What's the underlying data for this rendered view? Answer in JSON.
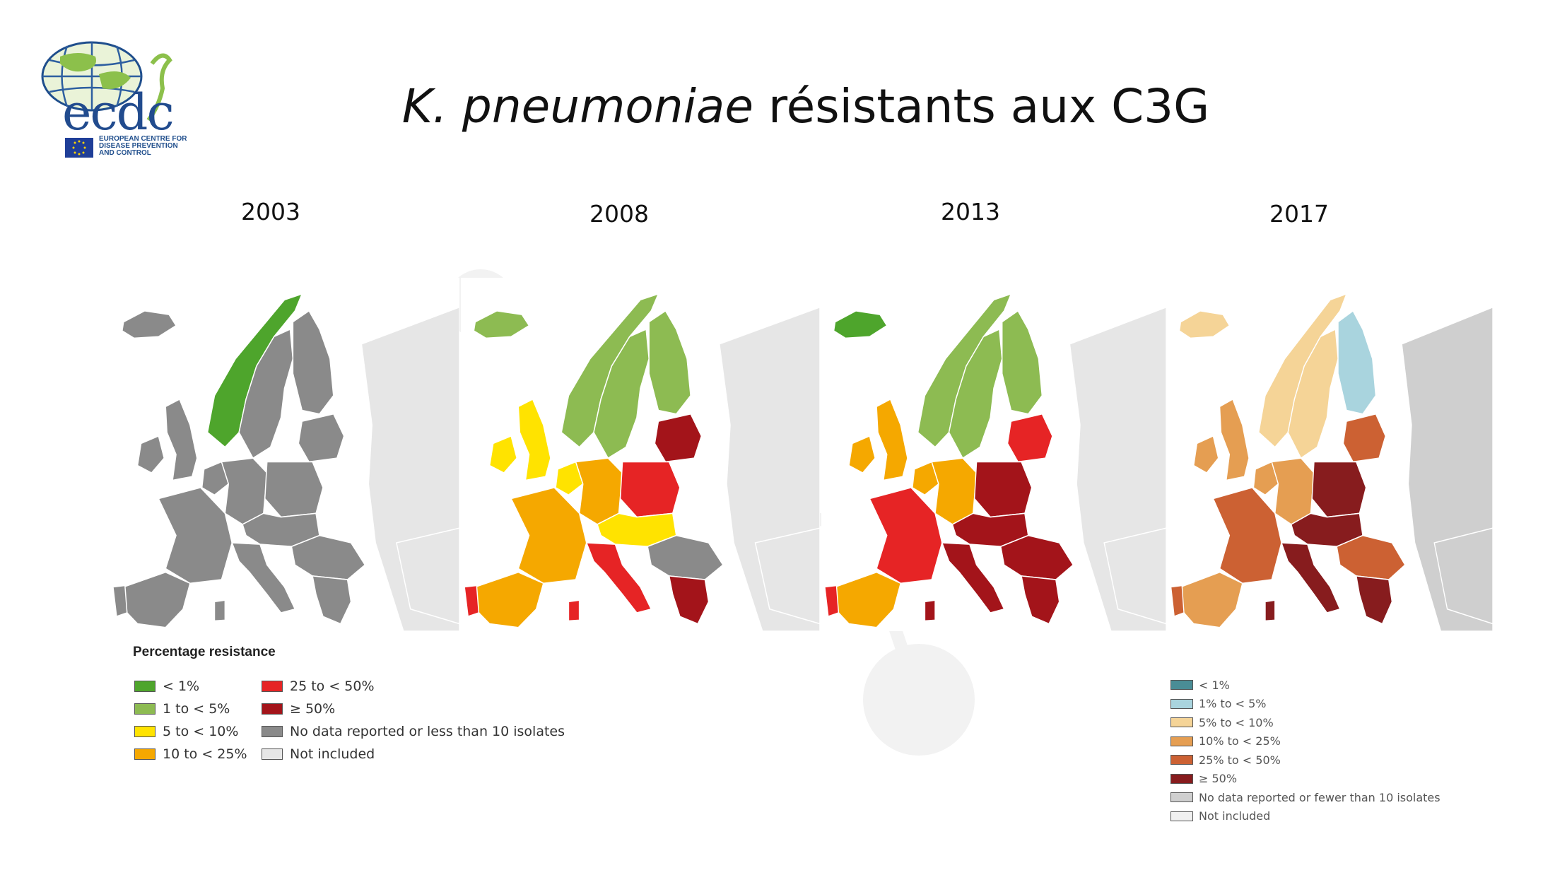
{
  "header": {
    "title_italic": "K. pneumoniae",
    "title_rest": " résistants aux C3G"
  },
  "logo": {
    "wordmark": "ecdc",
    "org_line1": "EUROPEAN CENTRE FOR",
    "org_line2": "DISEASE PREVENTION",
    "org_line3": "AND CONTROL"
  },
  "years": [
    "2003",
    "2008",
    "2013",
    "2017"
  ],
  "legend_main": {
    "title": "Percentage resistance",
    "items": [
      {
        "label": "< 1%",
        "color": "#4ea52c"
      },
      {
        "label": "1 to < 5%",
        "color": "#8dbb52"
      },
      {
        "label": "5 to < 10%",
        "color": "#ffe300"
      },
      {
        "label": "10 to < 25%",
        "color": "#f5a800"
      },
      {
        "label": "25 to < 50%",
        "color": "#e62425"
      },
      {
        "label": "≥ 50%",
        "color": "#a3141a"
      },
      {
        "label": "No data reported or less than 10 isolates",
        "color": "#8a8a8a"
      },
      {
        "label": "Not included",
        "color": "#e6e6e6"
      }
    ]
  },
  "legend_2017": {
    "items": [
      {
        "label": "< 1%",
        "color": "#4a8d96"
      },
      {
        "label": "1% to < 5%",
        "color": "#a9d4de"
      },
      {
        "label": "5% to < 10%",
        "color": "#f5d497"
      },
      {
        "label": "10% to < 25%",
        "color": "#e59e52"
      },
      {
        "label": "25% to < 50%",
        "color": "#cc6133"
      },
      {
        "label": "≥ 50%",
        "color": "#871c1e"
      },
      {
        "label": "No data reported or fewer than 10 isolates",
        "color": "#cfcfcf"
      },
      {
        "label": "Not included",
        "color": "#f0f0f0"
      }
    ]
  },
  "maps": [
    {
      "year": "2003",
      "colors": {
        "nordic": "#4ea52c",
        "iceland": "#8a8a8a",
        "uk": "#8a8a8a",
        "iberia": "#8a8a8a",
        "portugal": "#8a8a8a",
        "france": "#8a8a8a",
        "benelux": "#8a8a8a",
        "germany": "#8a8a8a",
        "poland": "#8a8a8a",
        "baltic": "#8a8a8a",
        "central": "#8a8a8a",
        "italy": "#8a8a8a",
        "balkan": "#8a8a8a",
        "greece": "#8a8a8a",
        "east": "#e6e6e6",
        "sweden": "#8a8a8a",
        "finland": "#8a8a8a"
      }
    },
    {
      "year": "2008",
      "colors": {
        "nordic": "#8dbb52",
        "iceland": "#8dbb52",
        "uk": "#ffe300",
        "iberia": "#f5a800",
        "portugal": "#e62425",
        "france": "#f5a800",
        "benelux": "#ffe300",
        "germany": "#f5a800",
        "poland": "#e62425",
        "baltic": "#a3141a",
        "central": "#ffe300",
        "italy": "#e62425",
        "balkan": "#8a8a8a",
        "greece": "#a3141a",
        "east": "#e6e6e6",
        "sweden": "#8dbb52",
        "finland": "#8dbb52"
      }
    },
    {
      "year": "2013",
      "colors": {
        "nordic": "#8dbb52",
        "iceland": "#4ea52c",
        "uk": "#f5a800",
        "iberia": "#f5a800",
        "portugal": "#e62425",
        "france": "#e62425",
        "benelux": "#f5a800",
        "germany": "#f5a800",
        "poland": "#a3141a",
        "baltic": "#e62425",
        "central": "#a3141a",
        "italy": "#a3141a",
        "balkan": "#a3141a",
        "greece": "#a3141a",
        "east": "#e6e6e6",
        "sweden": "#8dbb52",
        "finland": "#8dbb52"
      }
    },
    {
      "year": "2017",
      "colors": {
        "nordic": "#f5d497",
        "iceland": "#f5d497",
        "uk": "#e59e52",
        "iberia": "#e59e52",
        "portugal": "#cc6133",
        "france": "#cc6133",
        "benelux": "#e59e52",
        "germany": "#e59e52",
        "poland": "#871c1e",
        "baltic": "#cc6133",
        "central": "#871c1e",
        "italy": "#871c1e",
        "balkan": "#cc6133",
        "greece": "#871c1e",
        "east": "#cfcfcf",
        "sweden": "#f5d497",
        "finland": "#a9d4de"
      }
    }
  ]
}
